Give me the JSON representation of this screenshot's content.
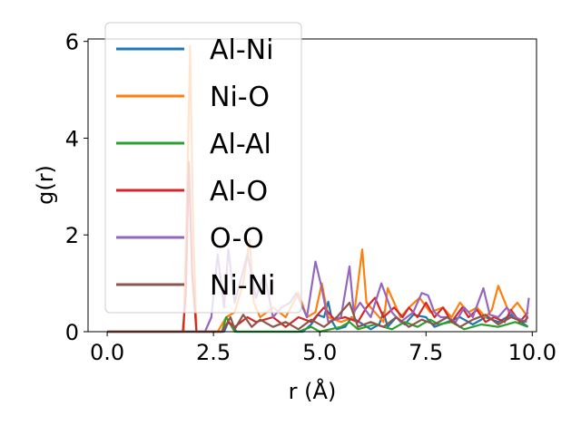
{
  "chart_data": {
    "type": "line",
    "xlabel": "r (Å)",
    "ylabel": "g(r)",
    "xlim": [
      -0.45,
      10.1
    ],
    "ylim": [
      0,
      6.05
    ],
    "xticks": [
      0.0,
      2.5,
      5.0,
      7.5,
      10.0
    ],
    "xtick_labels": [
      "0.0",
      "2.5",
      "5.0",
      "7.5",
      "10.0"
    ],
    "yticks": [
      0,
      2,
      4,
      6
    ],
    "ytick_labels": [
      "0",
      "2",
      "4",
      "6"
    ],
    "grid": false,
    "legend_position": "top-left",
    "series": [
      {
        "name": "Al-Ni",
        "color": "#1f77b4",
        "x": [
          0,
          1.8,
          2.75,
          2.85,
          2.95,
          3.05,
          3.5,
          4.6,
          4.8,
          4.95,
          5.1,
          5.2,
          5.3,
          5.4,
          5.6,
          5.75,
          6.2,
          6.4,
          6.5,
          6.6,
          6.8,
          7.0,
          7.2,
          7.5,
          7.7,
          8.0,
          8.3,
          8.6,
          8.9,
          9.2,
          9.5,
          9.9
        ],
        "y": [
          0,
          0,
          0,
          0.2,
          0.1,
          0,
          0,
          0,
          0.15,
          0.35,
          0.3,
          0.62,
          0.2,
          0.05,
          0.1,
          0.3,
          0.05,
          0.15,
          0.4,
          0.1,
          0.3,
          0.15,
          0.35,
          0.3,
          0.1,
          0.2,
          0.3,
          0.15,
          0.3,
          0.2,
          0.35,
          0.1
        ]
      },
      {
        "name": "Ni-O",
        "color": "#ff7f0e",
        "x": [
          0,
          1.8,
          1.88,
          1.95,
          2.02,
          2.1,
          2.6,
          2.8,
          3.0,
          3.2,
          3.35,
          3.45,
          3.6,
          3.9,
          4.2,
          4.5,
          4.7,
          4.9,
          5.05,
          5.2,
          5.5,
          5.8,
          6.0,
          6.1,
          6.3,
          6.5,
          6.6,
          6.9,
          7.1,
          7.35,
          7.6,
          7.9,
          8.1,
          8.3,
          8.5,
          8.7,
          8.9,
          9.05,
          9.2,
          9.45,
          9.65,
          9.9
        ],
        "y": [
          0,
          0,
          2.8,
          5.9,
          2.2,
          0,
          0,
          0.3,
          0.4,
          1.0,
          1.9,
          0.6,
          0.3,
          0.5,
          0.3,
          0.8,
          0.3,
          0.4,
          1.0,
          0.3,
          0.2,
          0.3,
          1.7,
          0.6,
          0.4,
          0.2,
          0.9,
          0.3,
          0.5,
          0.7,
          0.4,
          0.5,
          0.3,
          0.6,
          0.4,
          0.5,
          0.3,
          0.45,
          0.95,
          0.4,
          0.6,
          0.3
        ]
      },
      {
        "name": "Al-Al",
        "color": "#2ca02c",
        "x": [
          0,
          2.7,
          2.8,
          2.9,
          3.0,
          3.6,
          4.5,
          4.8,
          5.0,
          5.5,
          5.7,
          5.9,
          6.3,
          6.7,
          7.0,
          7.3,
          7.6,
          7.8,
          8.1,
          8.4,
          8.8,
          9.2,
          9.6,
          9.9
        ],
        "y": [
          0,
          0,
          0.3,
          0.15,
          0,
          0,
          0,
          0.1,
          0,
          0.1,
          0.2,
          0.05,
          0.15,
          0.05,
          0.2,
          0.1,
          0.25,
          0.15,
          0.2,
          0.05,
          0.15,
          0.1,
          0.2,
          0.1
        ]
      },
      {
        "name": "Al-O",
        "color": "#d62728",
        "x": [
          0,
          1.78,
          1.85,
          1.92,
          2.0,
          2.1,
          2.7,
          2.85,
          3.0,
          3.3,
          3.5,
          3.9,
          4.2,
          4.5,
          4.8,
          5.1,
          5.35,
          5.6,
          5.9,
          6.1,
          6.3,
          6.5,
          6.75,
          6.95,
          7.1,
          7.3,
          7.5,
          7.7,
          7.9,
          8.1,
          8.35,
          8.5,
          8.7,
          8.9,
          9.1,
          9.35,
          9.5,
          9.7,
          9.9
        ],
        "y": [
          0,
          0,
          0.8,
          3.5,
          1.2,
          0,
          0,
          0.2,
          0.1,
          0.3,
          0.2,
          0.3,
          0.1,
          0.3,
          0.2,
          0.5,
          0.25,
          0.3,
          0.2,
          0.5,
          0.7,
          0.3,
          0.5,
          0.3,
          0.5,
          0.3,
          0.6,
          0.3,
          0.5,
          0.2,
          0.5,
          0.3,
          0.45,
          0.2,
          0.3,
          0.2,
          0.45,
          0.2,
          0.4
        ]
      },
      {
        "name": "O-O",
        "color": "#9467bd",
        "x": [
          0,
          2.3,
          2.45,
          2.6,
          2.75,
          2.85,
          3.0,
          3.3,
          3.5,
          3.7,
          3.9,
          4.1,
          4.3,
          4.45,
          4.7,
          4.9,
          5.05,
          5.2,
          5.5,
          5.7,
          5.8,
          5.95,
          6.2,
          6.45,
          6.7,
          6.9,
          7.2,
          7.4,
          7.55,
          7.7,
          7.85,
          8.0,
          8.2,
          8.4,
          8.6,
          8.85,
          9.0,
          9.2,
          9.4,
          9.6,
          9.85,
          9.92
        ],
        "y": [
          0,
          0,
          0.3,
          1.6,
          0.5,
          1.7,
          0.6,
          1.6,
          0.7,
          1.2,
          0.3,
          0.5,
          0.6,
          0.8,
          0.3,
          1.45,
          0.9,
          0.2,
          0.3,
          1.35,
          0.4,
          0.6,
          0.3,
          1.0,
          0.4,
          0.2,
          0.4,
          0.8,
          0.75,
          0.4,
          0.3,
          0.3,
          0.2,
          0.5,
          0.3,
          0.9,
          0.35,
          0.3,
          0.5,
          0.3,
          0.2,
          0.7
        ]
      },
      {
        "name": "Ni-Ni",
        "color": "#8c564b",
        "x": [
          0,
          2.7,
          2.9,
          3.0,
          3.2,
          3.4,
          3.6,
          3.9,
          4.2,
          4.5,
          4.8,
          5.1,
          5.4,
          5.7,
          5.9,
          6.2,
          6.5,
          6.8,
          7.1,
          7.4,
          7.7,
          8.0,
          8.3,
          8.6,
          8.9,
          9.2,
          9.5,
          9.8,
          9.9
        ],
        "y": [
          0,
          0,
          0.3,
          0.05,
          0.35,
          0.1,
          0.25,
          0.1,
          0.2,
          0.05,
          0.25,
          0.1,
          0.3,
          0.6,
          0.1,
          0.2,
          0.1,
          0.3,
          0.1,
          0.25,
          0.15,
          0.3,
          0.1,
          0.25,
          0.35,
          0.15,
          0.3,
          0.2,
          0.3
        ]
      }
    ]
  }
}
